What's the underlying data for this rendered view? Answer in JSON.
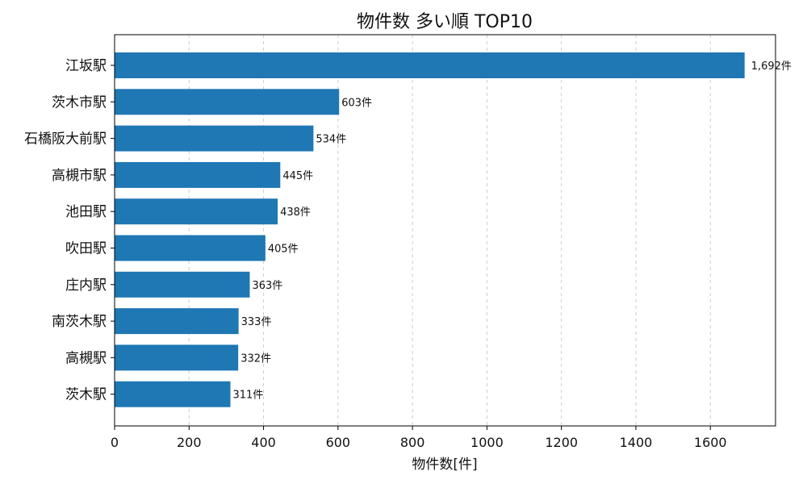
{
  "chart_data": {
    "type": "bar",
    "orientation": "horizontal",
    "title": "物件数 多い順 TOP10",
    "xlabel": "物件数[件]",
    "ylabel": "",
    "categories": [
      "江坂駅",
      "茨木市駅",
      "石橋阪大前駅",
      "高槻市駅",
      "池田駅",
      "吹田駅",
      "庄内駅",
      "南茨木駅",
      "高槻駅",
      "茨木駅"
    ],
    "values": [
      1692,
      603,
      534,
      445,
      438,
      405,
      363,
      333,
      332,
      311
    ],
    "value_labels": [
      "1,692件",
      "603件",
      "534件",
      "445件",
      "438件",
      "405件",
      "363件",
      "333件",
      "332件",
      "311件"
    ],
    "xlim": [
      0,
      1775
    ],
    "x_ticks": [
      0,
      200,
      400,
      600,
      800,
      1000,
      1200,
      1400,
      1600
    ],
    "grid": "x-dashed",
    "bar_color": "#1f77b4",
    "grid_color": "#cccccc"
  }
}
